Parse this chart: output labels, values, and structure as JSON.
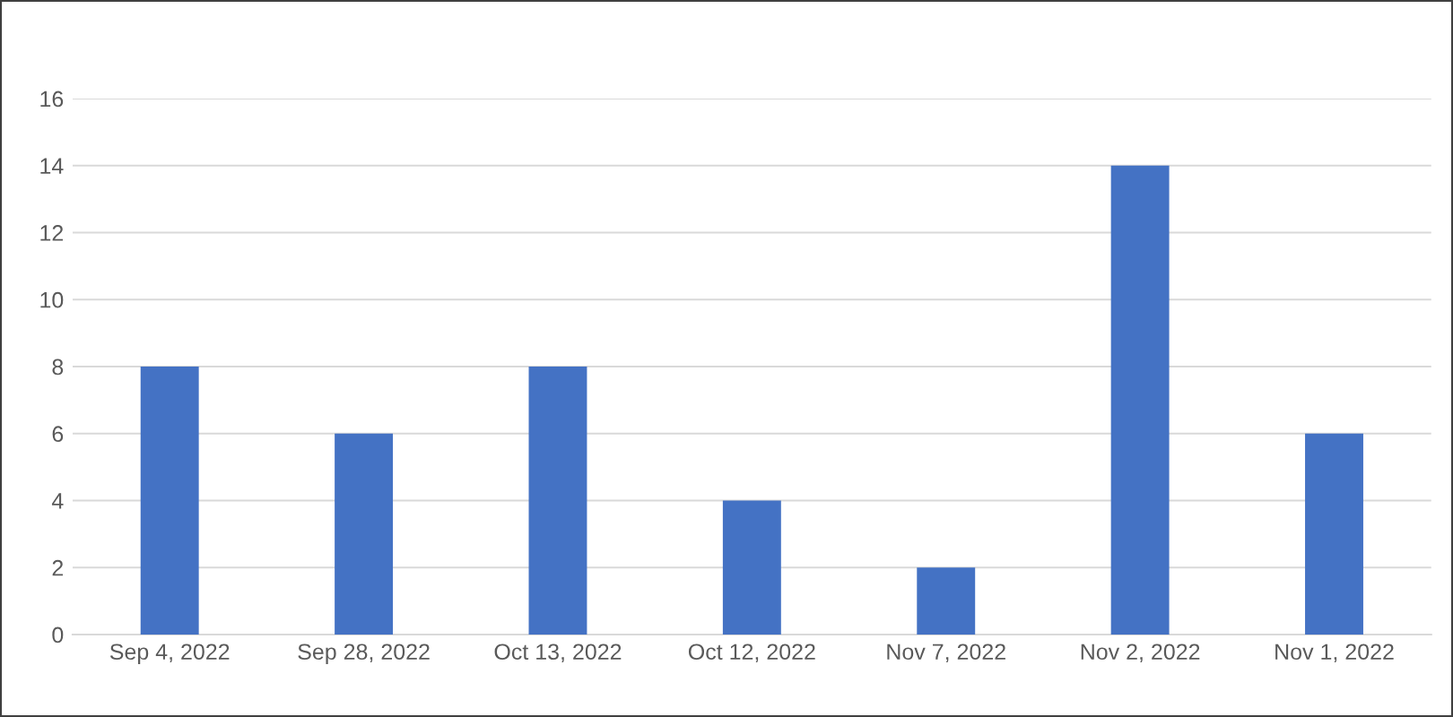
{
  "chart_data": {
    "type": "bar",
    "categories": [
      "Sep 4, 2022",
      "Sep 28, 2022",
      "Oct 13, 2022",
      "Oct 12, 2022",
      "Nov 7, 2022",
      "Nov 2, 2022",
      "Nov 1, 2022"
    ],
    "values": [
      8,
      6,
      8,
      4,
      2,
      14,
      6
    ],
    "color": "#4472c4",
    "ylim": [
      0,
      16
    ],
    "yticks": [
      0,
      2,
      4,
      6,
      8,
      10,
      12,
      14,
      16
    ],
    "grid": "y"
  }
}
